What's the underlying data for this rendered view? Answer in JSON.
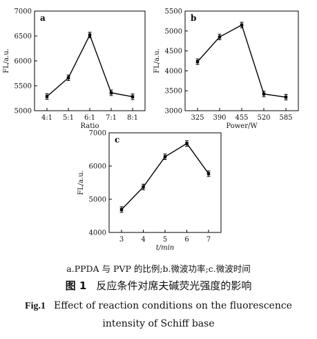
{
  "chart_data": [
    {
      "type": "line",
      "panel": "a",
      "xlabel": "Ratio",
      "ylabel": "FL/a.u.",
      "categories": [
        "4:1",
        "5:1",
        "6:1",
        "7:1",
        "8:1"
      ],
      "values": [
        5285,
        5660,
        6520,
        5360,
        5280
      ],
      "ylim": [
        5000,
        7000
      ],
      "yticks": [
        5000,
        5500,
        6000,
        6500,
        7000
      ]
    },
    {
      "type": "line",
      "panel": "b",
      "xlabel": "Power/W",
      "ylabel": "FL/a.u.",
      "categories": [
        "325",
        "390",
        "455",
        "520",
        "585"
      ],
      "values": [
        4230,
        4850,
        5150,
        3420,
        3340
      ],
      "ylim": [
        3000,
        5500
      ],
      "yticks": [
        3000,
        3500,
        4000,
        4500,
        5000,
        5500
      ]
    },
    {
      "type": "line",
      "panel": "c",
      "xlabel": "t/min",
      "ylabel": "FL/a.u.",
      "categories": [
        "3",
        "4",
        "5",
        "6",
        "7"
      ],
      "values": [
        4690,
        5370,
        6280,
        6680,
        5770
      ],
      "ylim": [
        4000,
        7000
      ],
      "yticks": [
        4000,
        5000,
        6000,
        7000
      ]
    }
  ],
  "caption": {
    "sub": "a.PPDA 与 PVP 的比例;b.微波功率;c.微波时间",
    "cn_label": "图 1",
    "cn_text": "反应条件对席夫碱荧光强度的影响",
    "en_label": "Fig.1",
    "en_text_1": "Effect of reaction conditions on the fluorescence",
    "en_text_2": "intensity of Schiff base"
  }
}
